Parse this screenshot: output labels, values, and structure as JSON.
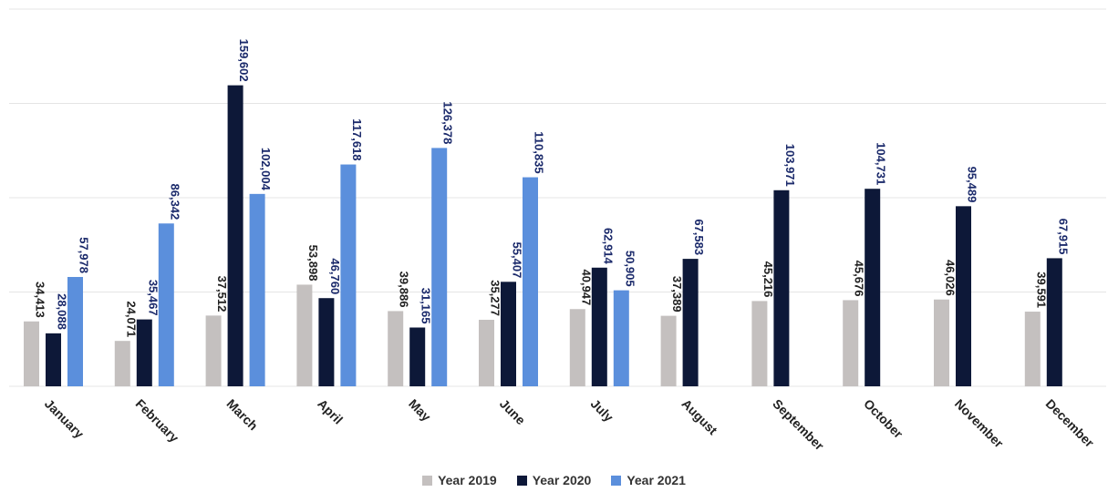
{
  "chart_data": {
    "type": "bar",
    "title": "",
    "xlabel": "",
    "ylabel": "",
    "ylim": [
      0,
      200000
    ],
    "grid": true,
    "legend_position": "bottom",
    "categories": [
      "January",
      "February",
      "March",
      "April",
      "May",
      "June",
      "July",
      "August",
      "September",
      "October",
      "November",
      "December"
    ],
    "series": [
      {
        "name": "Year 2019",
        "color": "#c4c0bf",
        "label_color": "#222222",
        "values": [
          34413,
          24071,
          37512,
          53898,
          39886,
          35277,
          40947,
          37389,
          45216,
          45676,
          46026,
          39591
        ],
        "labels": [
          "34,413",
          "24,071",
          "37,512",
          "53,898",
          "39,886",
          "35,277",
          "40,947",
          "37,389",
          "45,216",
          "45,676",
          "46,026",
          "39,591"
        ]
      },
      {
        "name": "Year 2020",
        "color": "#0d1838",
        "label_color": "#1b2a6b",
        "values": [
          28088,
          35467,
          159602,
          46760,
          31165,
          55407,
          62914,
          67583,
          103971,
          104731,
          95489,
          67915
        ],
        "labels": [
          "28,088",
          "35,467",
          "159,602",
          "46,760",
          "31,165",
          "55,407",
          "62,914",
          "67,583",
          "103,971",
          "104,731",
          "95,489",
          "67,915"
        ]
      },
      {
        "name": "Year 2021",
        "color": "#5b8fdc",
        "label_color": "#1b2a6b",
        "values": [
          57978,
          86342,
          102004,
          117618,
          126378,
          110835,
          50905,
          null,
          null,
          null,
          null,
          null
        ],
        "labels": [
          "57,978",
          "86,342",
          "102,004",
          "117,618",
          "126,378",
          "110,835",
          "50,905",
          "",
          "",
          "",
          "",
          ""
        ]
      }
    ]
  }
}
